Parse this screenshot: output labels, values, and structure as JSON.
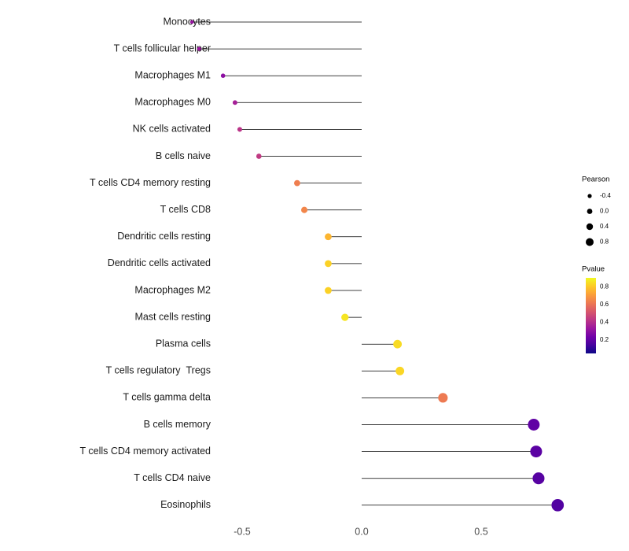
{
  "chart_data": {
    "type": "lollipop",
    "title": "",
    "xlabel": "",
    "ylabel": "",
    "x_tick_labels": [
      "-0.5",
      "0.0",
      "0.5"
    ],
    "x_tick_values": [
      -0.5,
      0.0,
      0.5
    ],
    "xlim": [
      -0.82,
      0.95
    ],
    "grid": false,
    "categories": [
      "Monocytes",
      "T cells follicular helper",
      "Macrophages M1",
      "Macrophages M0",
      "NK cells activated",
      "B cells naive",
      "T cells CD4 memory resting",
      "T cells CD8",
      "Dendritic cells resting",
      "Dendritic cells activated",
      "Macrophages M2",
      "Mast cells resting",
      "Plasma cells",
      "T cells regulatory  Tregs",
      "T cells gamma delta",
      "B cells memory",
      "T cells CD4 memory activated",
      "T cells CD4 naive",
      "Eosinophils"
    ],
    "series": [
      {
        "name": "Pearson",
        "values": [
          -0.71,
          -0.68,
          -0.58,
          -0.53,
          -0.51,
          -0.43,
          -0.27,
          -0.24,
          -0.14,
          -0.14,
          -0.14,
          -0.07,
          0.15,
          0.16,
          0.34,
          0.72,
          0.73,
          0.74,
          0.82
        ]
      },
      {
        "name": "Pvalue",
        "values": [
          0.32,
          0.33,
          0.3,
          0.36,
          0.42,
          0.44,
          0.63,
          0.65,
          0.76,
          0.82,
          0.82,
          0.86,
          0.84,
          0.83,
          0.62,
          0.2,
          0.19,
          0.18,
          0.17
        ]
      }
    ],
    "size_encoding": "Pearson",
    "color_encoding": "Pvalue",
    "colormap": "plasma",
    "plasma_stops": [
      "#0d0887",
      "#46039f",
      "#7201a8",
      "#9c179e",
      "#bd3786",
      "#d8576b",
      "#ed7953",
      "#fb9f3a",
      "#fdca26",
      "#f0f921"
    ]
  },
  "legend": {
    "pearson": {
      "title": "Pearson",
      "labels": [
        "-0.4",
        "0.0",
        "0.4",
        "0.8"
      ],
      "values": [
        -0.4,
        0.0,
        0.4,
        0.8
      ],
      "dot_color": "#000000"
    },
    "pvalue": {
      "title": "Pvalue",
      "labels": [
        "0.8",
        "0.6",
        "0.4",
        "0.2"
      ],
      "values": [
        0.8,
        0.6,
        0.4,
        0.2
      ],
      "domain": [
        0.05,
        0.9
      ]
    }
  },
  "colors": {
    "background": "#ffffff",
    "stem": "#000000",
    "category_label": "#1a1a1a",
    "axis_tick_label": "#4d4d4d",
    "legend_text": "#000000"
  }
}
